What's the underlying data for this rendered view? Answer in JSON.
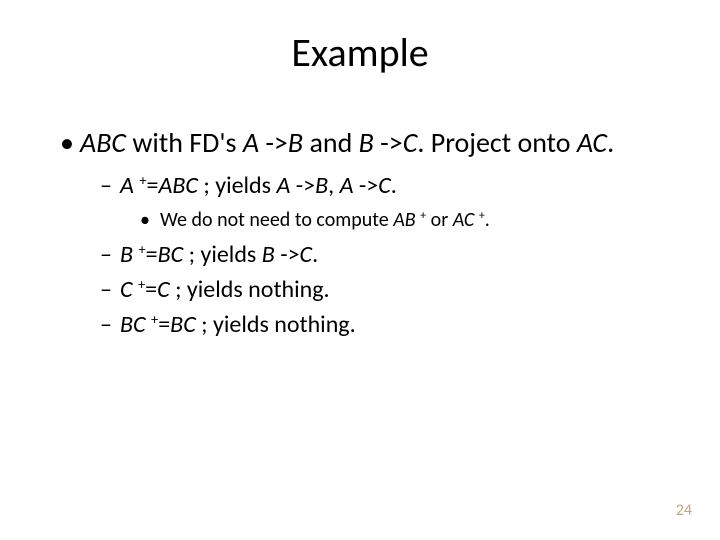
{
  "title": "Example",
  "bullet_l1": {
    "part1": "ABC",
    "part2": " with FD's ",
    "part3": "A",
    "arrow1": " ->",
    "part4": "B",
    "mid": "  and ",
    "part5": "B",
    "arrow2": " ->",
    "part6": "C",
    "part7": ".  Project onto ",
    "part8": "AC",
    "part9": "."
  },
  "l2a": {
    "A": "A",
    "plus": "+",
    "eq": "=",
    "ABC": "ABC",
    "yields": " ; yields ",
    "A2": "A",
    "ar1": " ->",
    "B": "B",
    "comma": ", ",
    "A3": "A",
    "ar2": " ->",
    "C": "C",
    "dot": "."
  },
  "l3a": {
    "t1": "We do not need to compute ",
    "AB": "AB",
    "plus1": "+",
    "or": " or ",
    "AC": "AC",
    "plus2": "+",
    "dot": "."
  },
  "l2b": {
    "B": "B",
    "plus": "+",
    "eq": "=",
    "BC": "BC",
    "yields": " ; yields ",
    "B2": "B",
    "ar": " ->",
    "C": "C",
    "dot": "."
  },
  "l2c": {
    "C": "C",
    "plus": "+",
    "eq": "=",
    "C2": "C",
    "yn": " ; yields nothing."
  },
  "l2d": {
    "BC": "BC",
    "plus": "+",
    "eq": "=",
    "BC2": "BC",
    "yn": " ; yields nothing."
  },
  "pagenum": "24",
  "glyphs": {
    "disc": "•",
    "dash": "–",
    "small": "•"
  }
}
